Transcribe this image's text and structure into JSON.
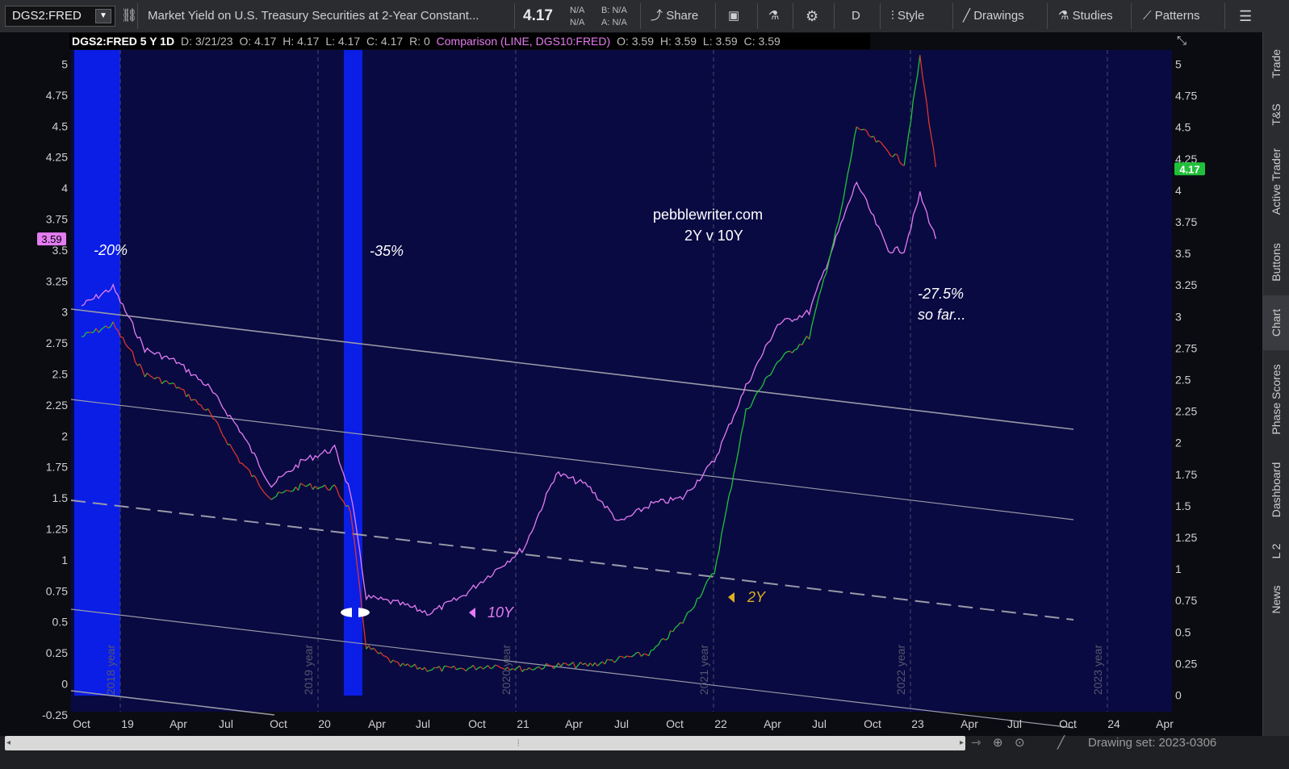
{
  "toolbar": {
    "symbol": "DGS2:FRED",
    "description": "Market Yield on U.S. Treasury Securities at 2-Year Constant...",
    "last": "4.17",
    "na1": "N/A",
    "na2": "N/A",
    "bid": "B: N/A",
    "ask": "A: N/A",
    "share": "Share",
    "period": "D",
    "style": "Style",
    "drawings": "Drawings",
    "studies": "Studies",
    "patterns": "Patterns"
  },
  "header": {
    "title": "DGS2:FRED 5 Y 1D",
    "date": "D: 3/21/23",
    "o": "O: 4.17",
    "h": "H: 4.17",
    "l": "L: 4.17",
    "c": "C: 4.17",
    "r": "R: 0",
    "comparison": "Comparison (LINE, DGS10:FRED)",
    "co": "O: 3.59",
    "ch": "H: 3.59",
    "cl": "L: 3.59",
    "cc": "C: 3.59"
  },
  "sidebar": [
    "Trade",
    "T&S",
    "Active Trader",
    "Buttons",
    "Chart",
    "Phase Scores",
    "Dashboard",
    "L 2",
    "News"
  ],
  "bottom": {
    "drawing_set": "Drawing set: 2023-0306"
  },
  "colors": {
    "bg": "#090a42",
    "ten_year": "#e57cf2",
    "two_year_up": "#22c23a",
    "two_year_down": "#e0342a",
    "band": "#0a1ee6",
    "badge_last": "#21c03a",
    "badge_cmp": "#e57cf2"
  },
  "chart_data": {
    "type": "line",
    "title": "DGS2:FRED 5 Y 1D",
    "ylim": [
      -0.25,
      5.1
    ],
    "y_ticks_left": [
      -0.25,
      0,
      0.25,
      0.5,
      0.75,
      1,
      1.25,
      1.5,
      1.75,
      2,
      2.25,
      2.5,
      2.75,
      3,
      3.25,
      3.5,
      3.75,
      4,
      4.25,
      4.5,
      4.75,
      5
    ],
    "y_ticks_right": [
      0,
      0.25,
      0.5,
      0.75,
      1,
      1.25,
      1.5,
      1.75,
      2,
      2.25,
      2.5,
      2.75,
      3,
      3.25,
      3.5,
      3.75,
      4,
      4.25,
      4.5,
      4.75,
      5
    ],
    "x_ticks": [
      "Oct",
      "19",
      "Apr",
      "Jul",
      "Oct",
      "20",
      "Apr",
      "Jul",
      "Oct",
      "21",
      "Apr",
      "Jul",
      "Oct",
      "22",
      "Apr",
      "Jul",
      "Oct",
      "23",
      "Apr",
      "Jul",
      "Oct",
      "24",
      "Apr"
    ],
    "year_labels": [
      "2018 year",
      "2019 year",
      "2020 year",
      "2021 year",
      "2022 year",
      "2023 year"
    ],
    "series": [
      {
        "name": "DGS10:FRED",
        "x": [
          "2018-09",
          "2018-11",
          "2019-01",
          "2019-03",
          "2019-05",
          "2019-07",
          "2019-09",
          "2019-11",
          "2020-01",
          "2020-02",
          "2020-03",
          "2020-05",
          "2020-07",
          "2020-09",
          "2020-11",
          "2021-01",
          "2021-03",
          "2021-05",
          "2021-07",
          "2021-09",
          "2021-11",
          "2022-01",
          "2022-03",
          "2022-05",
          "2022-07",
          "2022-09",
          "2022-10",
          "2022-12",
          "2023-01",
          "2023-02",
          "2023-03"
        ],
        "values": [
          3.05,
          3.2,
          2.7,
          2.6,
          2.4,
          2.05,
          1.6,
          1.8,
          1.9,
          1.55,
          0.7,
          0.65,
          0.57,
          0.7,
          0.9,
          1.1,
          1.7,
          1.6,
          1.3,
          1.45,
          1.5,
          1.8,
          2.4,
          2.9,
          3.0,
          3.7,
          4.05,
          3.5,
          3.5,
          3.95,
          3.59
        ]
      },
      {
        "name": "DGS2:FRED",
        "x": [
          "2018-09",
          "2018-11",
          "2019-01",
          "2019-03",
          "2019-05",
          "2019-07",
          "2019-09",
          "2019-11",
          "2020-01",
          "2020-02",
          "2020-03",
          "2020-05",
          "2020-07",
          "2020-09",
          "2020-11",
          "2021-01",
          "2021-03",
          "2021-05",
          "2021-07",
          "2021-09",
          "2021-11",
          "2022-01",
          "2022-03",
          "2022-05",
          "2022-07",
          "2022-09",
          "2022-10",
          "2022-12",
          "2023-01",
          "2023-02",
          "2023-03"
        ],
        "values": [
          2.8,
          2.9,
          2.5,
          2.4,
          2.2,
          1.8,
          1.5,
          1.6,
          1.58,
          1.4,
          0.3,
          0.15,
          0.12,
          0.12,
          0.15,
          0.12,
          0.15,
          0.15,
          0.2,
          0.25,
          0.5,
          0.9,
          2.2,
          2.6,
          2.8,
          3.8,
          4.5,
          4.3,
          4.2,
          5.05,
          4.17
        ]
      }
    ],
    "annotations": [
      "-20%",
      "-35%",
      "pebblewriter.com",
      "2Y v 10Y",
      "-27.5%",
      "so far...",
      "10Y",
      "2Y"
    ],
    "last_values": {
      "left_badge": "3.59",
      "right_badge": "4.17"
    }
  }
}
